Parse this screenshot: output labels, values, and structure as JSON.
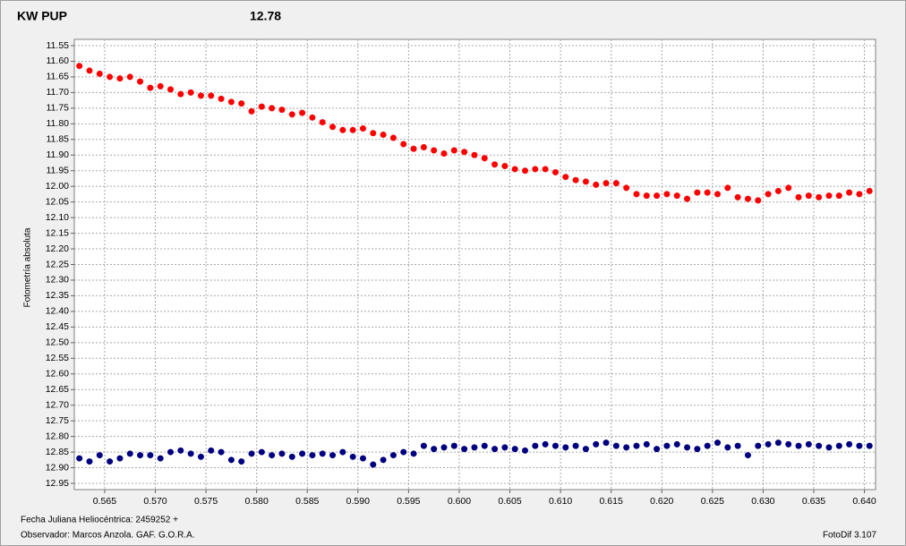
{
  "chart_data": {
    "type": "scatter",
    "title": "KW PUP",
    "title_color": "#e00000",
    "annotation": "12.78",
    "annotation_color": "#000080",
    "y_label": "Fotometría absoluta",
    "x_label": "Fecha Juliana Heliocéntrica: 2459252 +",
    "observer": "Observador:  Marcos Anzola. GAF. G.O.R.A.",
    "software": "FotoDif 3.107",
    "y_inverted": true,
    "grid": true,
    "xlim": [
      0.562,
      0.6411
    ],
    "ylim": [
      11.53,
      12.97
    ],
    "xticks": [
      0.565,
      {
        "value": 0.57,
        "label": "0.570"
      },
      0.575,
      {
        "value": 0.58,
        "label": "0.580"
      },
      0.585,
      {
        "value": 0.59,
        "label": "0.590"
      },
      0.595,
      {
        "value": 0.6,
        "label": "0.600"
      },
      0.605,
      {
        "value": 0.61,
        "label": "0.610"
      },
      0.615,
      {
        "value": 0.62,
        "label": "0.620"
      },
      0.625,
      {
        "value": 0.63,
        "label": "0.630"
      },
      0.635,
      {
        "value": 0.64,
        "label": "0.640"
      }
    ],
    "yticks": [
      11.55,
      {
        "value": 11.6,
        "label": "11.60"
      },
      11.65,
      {
        "value": 11.7,
        "label": "11.70"
      },
      11.75,
      {
        "value": 11.8,
        "label": "11.80"
      },
      11.85,
      {
        "value": 11.9,
        "label": "11.90"
      },
      11.95,
      {
        "value": 12,
        "label": "12.00"
      },
      12.05,
      {
        "value": 12.1,
        "label": "12.10"
      },
      12.15,
      {
        "value": 12.2,
        "label": "12.20"
      },
      12.25,
      {
        "value": 12.3,
        "label": "12.30"
      },
      12.35,
      {
        "value": 12.4,
        "label": "12.40"
      },
      12.45,
      {
        "value": 12.5,
        "label": "12.50"
      },
      12.55,
      {
        "value": 12.6,
        "label": "12.60"
      },
      12.65,
      {
        "value": 12.7,
        "label": "12.70"
      },
      12.75,
      {
        "value": 12.8,
        "label": "12.80"
      },
      12.85,
      {
        "value": 12.9,
        "label": "12.90"
      },
      12.95
    ],
    "x": [
      0.5625,
      0.5635,
      0.5645,
      0.5655,
      0.5665,
      0.5675,
      0.5685,
      0.5695,
      0.5705,
      0.5715,
      0.5725,
      0.5735,
      0.5745,
      0.5755,
      0.5765,
      0.5775,
      0.5785,
      0.5795,
      0.5805,
      0.5815,
      0.5825,
      0.5835,
      0.5845,
      0.5855,
      0.5865,
      0.5875,
      0.5885,
      0.5895,
      0.5905,
      0.5915,
      0.5925,
      0.5935,
      0.5945,
      0.5955,
      0.5965,
      0.5975,
      0.5985,
      0.5995,
      0.6005,
      0.6015,
      0.6025,
      0.6035,
      0.6045,
      0.6055,
      0.6065,
      0.6075,
      0.6085,
      0.6095,
      0.6105,
      0.6115,
      0.6125,
      0.6135,
      0.6145,
      0.6155,
      0.6165,
      0.6175,
      0.6185,
      0.6195,
      0.6205,
      0.6215,
      0.6225,
      0.6235,
      0.6245,
      0.6255,
      0.6265,
      0.6275,
      0.6285,
      0.6295,
      0.6305,
      0.6315,
      0.6325,
      0.6335,
      0.6345,
      0.6355,
      0.6365,
      0.6375,
      0.6385,
      0.6395,
      0.6405
    ],
    "series": [
      {
        "color": "#ff0000",
        "values": [
          11.615,
          11.63,
          11.64,
          11.65,
          11.655,
          11.65,
          11.665,
          11.685,
          11.68,
          11.69,
          11.705,
          11.7,
          11.71,
          11.71,
          11.72,
          11.73,
          11.735,
          11.76,
          11.745,
          11.75,
          11.755,
          11.77,
          11.765,
          11.78,
          11.795,
          11.81,
          11.82,
          11.82,
          11.815,
          11.83,
          11.835,
          11.845,
          11.865,
          11.88,
          11.875,
          11.885,
          11.895,
          11.885,
          11.89,
          11.9,
          11.91,
          11.93,
          11.935,
          11.945,
          11.95,
          11.945,
          11.945,
          11.955,
          11.97,
          11.98,
          11.985,
          11.995,
          11.99,
          11.99,
          12.005,
          12.025,
          12.03,
          12.03,
          12.025,
          12.03,
          12.04,
          12.02,
          12.02,
          12.025,
          12.005,
          12.035,
          12.04,
          12.045,
          12.025,
          12.015,
          12.005,
          12.035,
          12.03,
          12.035,
          12.03,
          12.03,
          12.02,
          12.025,
          12.015
        ]
      },
      {
        "color": "#000080",
        "values": [
          12.87,
          12.88,
          12.86,
          12.88,
          12.87,
          12.855,
          12.86,
          12.86,
          12.87,
          12.85,
          12.845,
          12.855,
          12.865,
          12.845,
          12.85,
          12.875,
          12.88,
          12.855,
          12.85,
          12.86,
          12.855,
          12.865,
          12.855,
          12.86,
          12.855,
          12.86,
          12.85,
          12.865,
          12.87,
          12.89,
          12.875,
          12.86,
          12.85,
          12.855,
          12.83,
          12.84,
          12.835,
          12.83,
          12.84,
          12.835,
          12.83,
          12.84,
          12.835,
          12.84,
          12.845,
          12.83,
          12.825,
          12.83,
          12.835,
          12.83,
          12.84,
          12.825,
          12.82,
          12.83,
          12.835,
          12.83,
          12.825,
          12.84,
          12.83,
          12.825,
          12.835,
          12.84,
          12.83,
          12.82,
          12.835,
          12.83,
          12.86,
          12.83,
          12.825,
          12.82,
          12.825,
          12.83,
          12.825,
          12.83,
          12.835,
          12.83,
          12.825,
          12.83,
          12.83
        ]
      }
    ]
  }
}
